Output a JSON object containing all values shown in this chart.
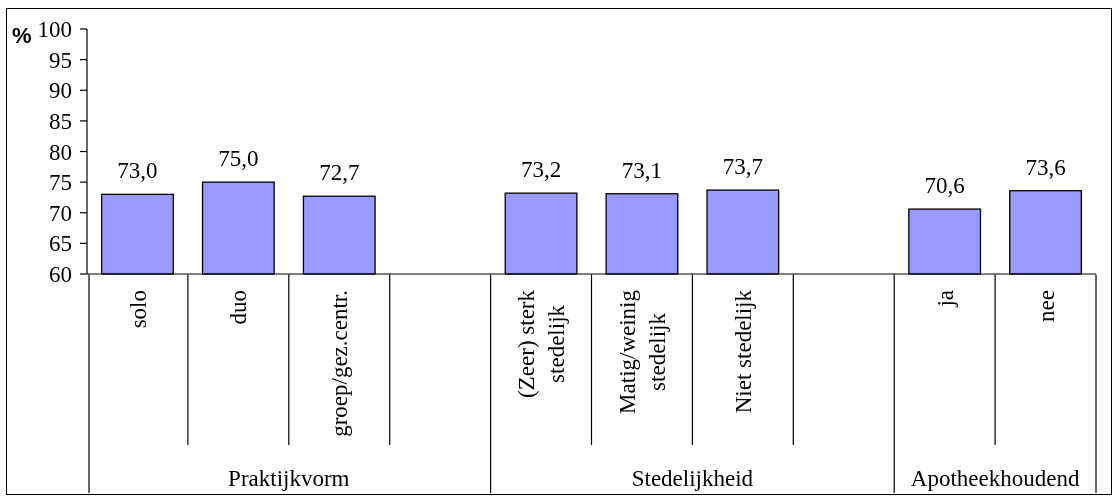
{
  "chart_data": {
    "type": "bar",
    "ylabel": "%",
    "categories": [
      "solo",
      "duo",
      "groep/gez.centr.",
      null,
      "(Zeer) sterk stedelijk",
      "Matig/weinig stedelijk",
      "Niet stedelijk",
      null,
      "ja",
      "nee"
    ],
    "values": [
      73.0,
      75.0,
      72.7,
      null,
      73.2,
      73.1,
      73.7,
      null,
      70.6,
      73.6
    ],
    "value_labels": [
      "73,0",
      "75,0",
      "72,7",
      null,
      "73,2",
      "73,1",
      "73,7",
      null,
      "70,6",
      "73,6"
    ],
    "color": "#9999ff",
    "ylim": [
      60,
      100
    ],
    "yticks": [
      60,
      65,
      70,
      75,
      80,
      85,
      90,
      95,
      100
    ],
    "annotations": [
      "Praktijkvorm",
      "Stedelijkheid",
      "Apotheekhoudend"
    ]
  }
}
